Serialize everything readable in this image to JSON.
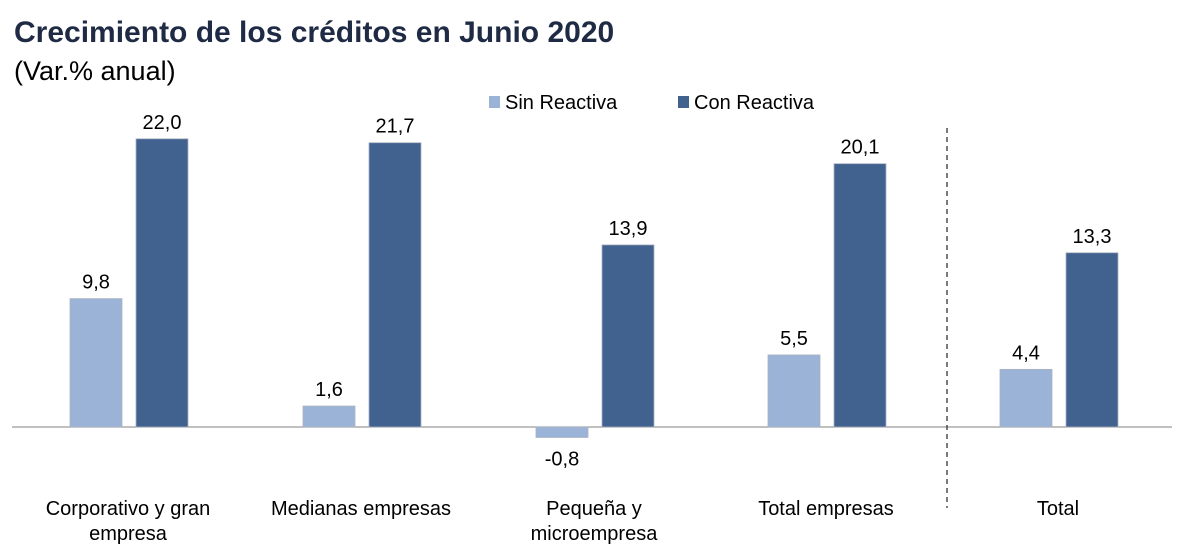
{
  "chart_data": {
    "type": "bar",
    "title": "Crecimiento de los créditos en Junio 2020",
    "subtitle": "(Var.% anual)",
    "categories": [
      [
        "Corporativo y gran",
        "empresa"
      ],
      [
        "Medianas empresas"
      ],
      [
        "Pequeña y",
        "microempresa"
      ],
      [
        "Total empresas"
      ],
      [
        "Total"
      ]
    ],
    "series": [
      {
        "name": "Sin Reactiva",
        "color": "#9bb3d6",
        "values": [
          9.8,
          1.6,
          -0.8,
          5.5,
          4.4
        ],
        "labels": [
          "9,8",
          "1,6",
          "-0,8",
          "5,5",
          "4,4"
        ]
      },
      {
        "name": "Con Reactiva",
        "color": "#41618f",
        "values": [
          22.0,
          21.7,
          13.9,
          20.1,
          13.3
        ],
        "labels": [
          "22,0",
          "21,7",
          "13,9",
          "20,1",
          "13,3"
        ]
      }
    ],
    "legend": "top",
    "separator_after_category": 3,
    "grid": false
  }
}
